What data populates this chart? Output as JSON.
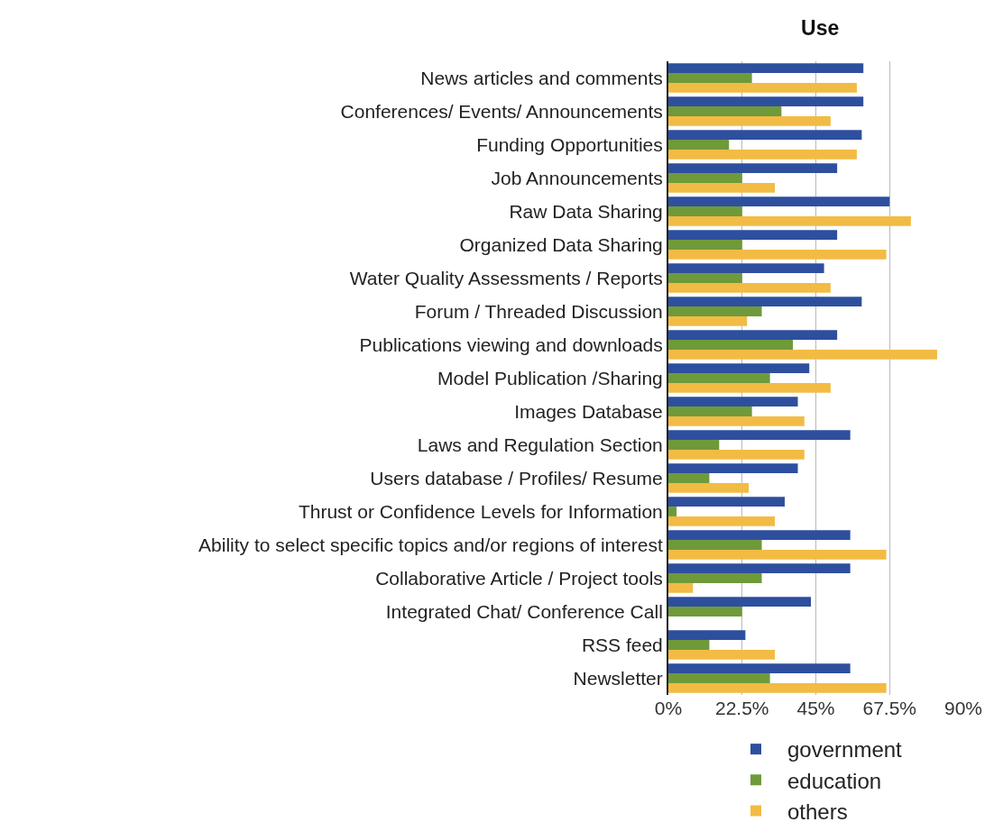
{
  "chart_data": {
    "type": "bar",
    "orientation": "horizontal",
    "title": "Use",
    "categories": [
      "News articles and comments",
      "Conferences/ Events/ Announcements",
      "Funding Opportunities",
      "Job Announcements",
      "Raw Data Sharing",
      "Organized Data Sharing",
      "Water Quality Assessments / Reports",
      "Forum / Threaded Discussion",
      "Publications viewing and downloads",
      "Model Publication /Sharing",
      "Images Database",
      "Laws and Regulation Section",
      "Users database / Profiles/ Resume",
      "Thrust or Confidence Levels for Information",
      "Ability to select specific topics and/or regions of interest",
      "Collaborative Article / Project tools",
      "Integrated Chat/ Conference Call",
      "RSS feed",
      "Newsletter"
    ],
    "series": [
      {
        "name": "government",
        "color": "#2e4f9e",
        "values": [
          59.5,
          59.5,
          59,
          51.5,
          67.5,
          51.5,
          47.5,
          59,
          51.5,
          43,
          39.5,
          55.5,
          39.5,
          35.5,
          55.5,
          55.5,
          43.5,
          23.5,
          55.5
        ]
      },
      {
        "name": "education",
        "color": "#6e9a3a",
        "values": [
          25.5,
          34.5,
          18.5,
          22.5,
          22.5,
          22.5,
          22.5,
          28.5,
          38,
          31,
          25.5,
          15.5,
          12.5,
          2.5,
          28.5,
          28.5,
          22.5,
          12.5,
          31
        ]
      },
      {
        "name": "others",
        "color": "#f2bb44",
        "values": [
          57.5,
          49.5,
          57.5,
          32.5,
          74,
          66.5,
          49.5,
          24,
          82,
          49.5,
          41.5,
          41.5,
          24.5,
          32.5,
          66.5,
          7.5,
          0,
          32.5,
          66.5
        ]
      }
    ],
    "xlim": [
      0,
      90
    ],
    "xticks": [
      {
        "value": 0,
        "label": "0%"
      },
      {
        "value": 22.5,
        "label": "22.5%"
      },
      {
        "value": 45,
        "label": "45%"
      },
      {
        "value": 67.5,
        "label": "67.5%"
      },
      {
        "value": 90,
        "label": "90%"
      }
    ],
    "grid": "x",
    "legend": "bottom"
  }
}
